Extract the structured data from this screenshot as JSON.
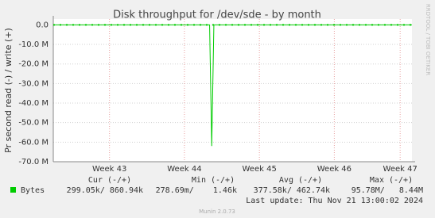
{
  "chart_data": {
    "type": "line",
    "title": "Disk throughput for /dev/sde - by month",
    "y_label": "Pr second read (-) / write (+)",
    "side_text": "RRDTOOL / TOBI OETIKER",
    "x": [
      0,
      14.6,
      14.8,
      15.0,
      33.5
    ],
    "series": [
      {
        "name": "Bytes",
        "color": "#00cc00",
        "values": [
          0,
          0,
          -62000000,
          0,
          0
        ]
      },
      {
        "color": "#00cc00",
        "values": [
          0,
          0,
          0,
          0,
          0
        ],
        "dashed": true
      }
    ],
    "xlim": [
      0,
      33.5
    ],
    "xticks": [
      {
        "value": 5.25,
        "label": "Week 43"
      },
      {
        "value": 12.25,
        "label": "Week 44"
      },
      {
        "value": 19.25,
        "label": "Week 45"
      },
      {
        "value": 26.25,
        "label": "Week 46"
      },
      {
        "value": 32.4,
        "label": "Week 47"
      }
    ],
    "ylim": [
      -70000000,
      3000000
    ],
    "yticks": [
      {
        "value": 0,
        "label": "0.0"
      },
      {
        "value": -10000000,
        "label": "-10.0 M"
      },
      {
        "value": -20000000,
        "label": "-20.0 M"
      },
      {
        "value": -30000000,
        "label": "-30.0 M"
      },
      {
        "value": -40000000,
        "label": "-40.0 M"
      },
      {
        "value": -50000000,
        "label": "-50.0 M"
      },
      {
        "value": -60000000,
        "label": "-60.0 M"
      },
      {
        "value": -70000000,
        "label": "-70.0 M"
      }
    ],
    "grid": true,
    "summary": {
      "columns": [
        "Cur (-/+)",
        "Min (-/+)",
        "Avg (-/+)",
        "Max (-/+)"
      ],
      "cells": [
        "299.05k/ 860.94k",
        "278.69m/    1.46k",
        "377.58k/ 462.74k",
        "95.78M/   8.44M"
      ]
    },
    "last_update": "Last update: Thu Nov 21 13:00:02 2024",
    "footer": "Munin 2.0.73"
  }
}
